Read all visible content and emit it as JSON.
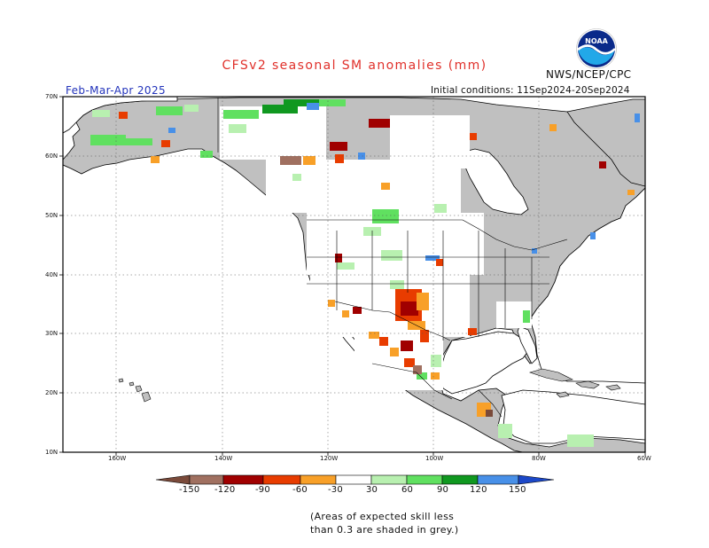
{
  "header": {
    "title": "CFSv2 seasonal SM anomalies (mm)",
    "agency": "NWS/NCEP/CPC",
    "season": "Feb-Mar-Apr 2025",
    "initial_conditions": "Initial conditions: 11Sep2024-20Sep2024",
    "logo_text": "NOAA"
  },
  "map": {
    "latitude_labels": [
      "70N",
      "60N",
      "50N",
      "40N",
      "30N",
      "20N",
      "10N"
    ],
    "longitude_labels": [
      "160W",
      "140W",
      "120W",
      "100W",
      "80W",
      "60W"
    ],
    "colors": {
      "ocean": "#ffffff",
      "low_skill_land": "#c0c0c0",
      "coastline": "#000000"
    }
  },
  "colorbar": {
    "tick_labels": [
      "-150",
      "-120",
      "-90",
      "-60",
      "-30",
      "30",
      "60",
      "90",
      "120",
      "150"
    ],
    "bins": [
      {
        "range": "< -150",
        "color": "#7a4a3a"
      },
      {
        "range": "-150 to -120",
        "color": "#a07060"
      },
      {
        "range": "-120 to -90",
        "color": "#a00000"
      },
      {
        "range": "-90 to -60",
        "color": "#e83c00"
      },
      {
        "range": "-60 to -30",
        "color": "#f8a028"
      },
      {
        "range": "-30 to 30",
        "color": "#ffffff"
      },
      {
        "range": "30 to 60",
        "color": "#b8f0b0"
      },
      {
        "range": "60 to 90",
        "color": "#60e060"
      },
      {
        "range": "90 to 120",
        "color": "#109820"
      },
      {
        "range": "120 to 150",
        "color": "#4890e8"
      },
      {
        "range": "> 150",
        "color": "#1c48c8"
      }
    ]
  },
  "footnote": {
    "line1": "(Areas of expected skill less",
    "line2": "than 0.3 are shaded in grey.)"
  }
}
